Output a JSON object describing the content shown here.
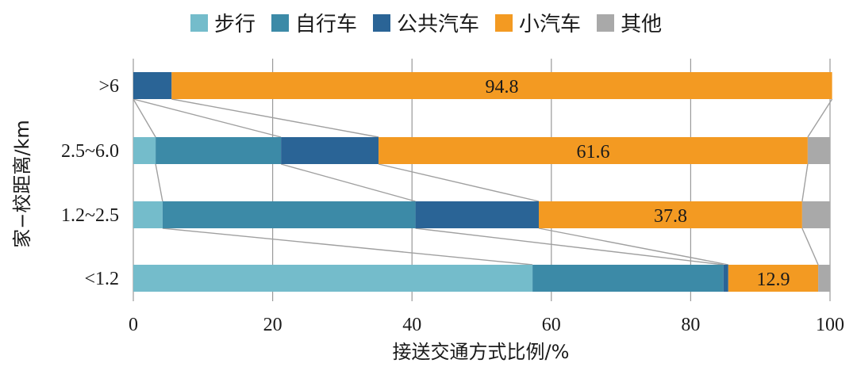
{
  "chart_data": {
    "type": "bar",
    "orientation": "horizontal",
    "stacked": true,
    "xlabel": "接送交通方式比例/%",
    "ylabel": "家−校距离/km",
    "xlim": [
      0,
      100
    ],
    "xticks": [
      "0",
      "20",
      "40",
      "60",
      "80",
      "100"
    ],
    "grid": "vertical",
    "legend_position": "top",
    "categories": [
      ">6",
      "2.5~6.0",
      "1.2~2.5",
      "<1.2"
    ],
    "series": [
      {
        "name": "步行",
        "color": "#74bccb",
        "values": [
          0,
          3.2,
          4.2,
          57.3
        ]
      },
      {
        "name": "自行车",
        "color": "#3c8aa7",
        "values": [
          0,
          18.0,
          36.3,
          27.4
        ]
      },
      {
        "name": "公共汽车",
        "color": "#2a6496",
        "values": [
          5.5,
          14.0,
          17.7,
          0.7
        ]
      },
      {
        "name": "小汽车",
        "color": "#f39a22",
        "values": [
          94.8,
          61.6,
          37.8,
          12.9
        ]
      },
      {
        "name": "其他",
        "color": "#a9a9a9",
        "values": [
          0,
          3.2,
          4.0,
          1.7
        ]
      }
    ],
    "data_labels": [
      "94.8",
      "61.6",
      "37.8",
      "12.9"
    ],
    "connector_color": "#a0a0a0"
  }
}
